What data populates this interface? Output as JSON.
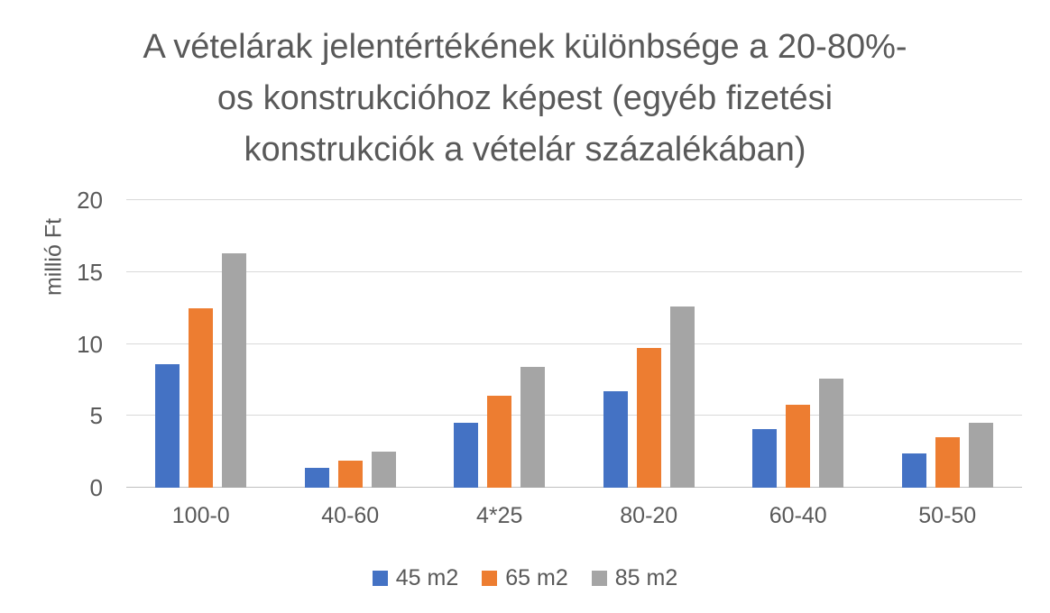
{
  "title_lines": [
    "A vételárak jelentértékének különbsége a 20-80%-",
    "os konstrukcióhoz képest (egyéb fizetési",
    "konstrukciók a vételár százalékában)"
  ],
  "chart_data": {
    "type": "bar",
    "title": "A vételárak jelentértékének különbsége a 20-80%-os konstrukcióhoz képest (egyéb fizetési konstrukciók a vételár százalékában)",
    "xlabel": "",
    "ylabel": "millió Ft",
    "categories": [
      "100-0",
      "40-60",
      "4*25",
      "80-20",
      "60-40",
      "50-50"
    ],
    "series": [
      {
        "name": "45 m2",
        "color": "#4472C4",
        "values": [
          8.6,
          1.4,
          4.5,
          6.7,
          4.1,
          2.4
        ]
      },
      {
        "name": "65 m2",
        "color": "#ED7D31",
        "values": [
          12.5,
          1.9,
          6.4,
          9.7,
          5.8,
          3.5
        ]
      },
      {
        "name": "85 m2",
        "color": "#A5A5A5",
        "values": [
          16.3,
          2.5,
          8.4,
          12.6,
          7.6,
          4.5
        ]
      }
    ],
    "ylim": [
      0,
      20
    ],
    "yticks": [
      0,
      5,
      10,
      15,
      20
    ],
    "grid": true,
    "legend_position": "bottom"
  },
  "colors": {
    "text": "#595959",
    "gridline": "#D9D9D9",
    "axis_line": "#BFBFBF",
    "background": "#FFFFFF"
  }
}
